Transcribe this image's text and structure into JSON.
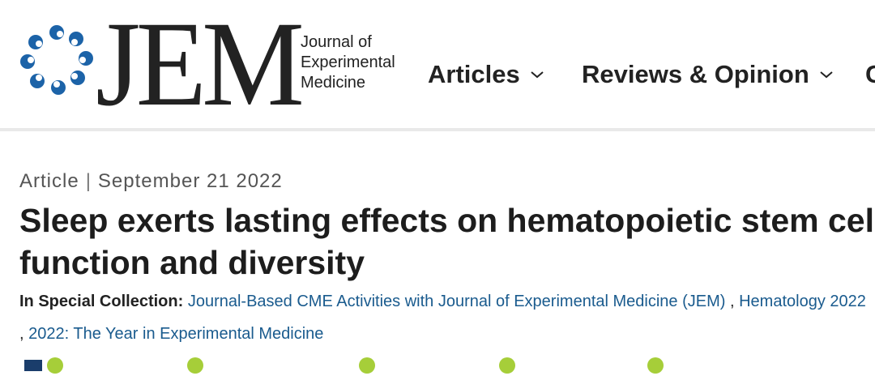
{
  "header": {
    "logo_text": "JEM",
    "logo_subtitle": [
      "Journal of",
      "Experimental",
      "Medicine"
    ],
    "nav": [
      {
        "label": "Articles",
        "icon": "chevron-down-icon"
      },
      {
        "label": "Reviews & Opinion",
        "icon": "chevron-down-icon"
      }
    ]
  },
  "article": {
    "type": "Article",
    "separator": "|",
    "date": "September 21 2022",
    "title_line1": "Sleep exerts lasting effects on hematopoietic stem cell",
    "title_line2": "function and diversity",
    "collection_label": "In Special Collection:",
    "collections": [
      "Journal-Based CME Activities with Journal of Experimental Medicine (JEM)",
      "Hematology 2022",
      "2022: The Year in Experimental Medicine"
    ],
    "collection_separator": ","
  },
  "colors": {
    "link": "#1a5b8e",
    "logo_blue": "#1c63a8",
    "orcid_green": "#a6ce39"
  }
}
